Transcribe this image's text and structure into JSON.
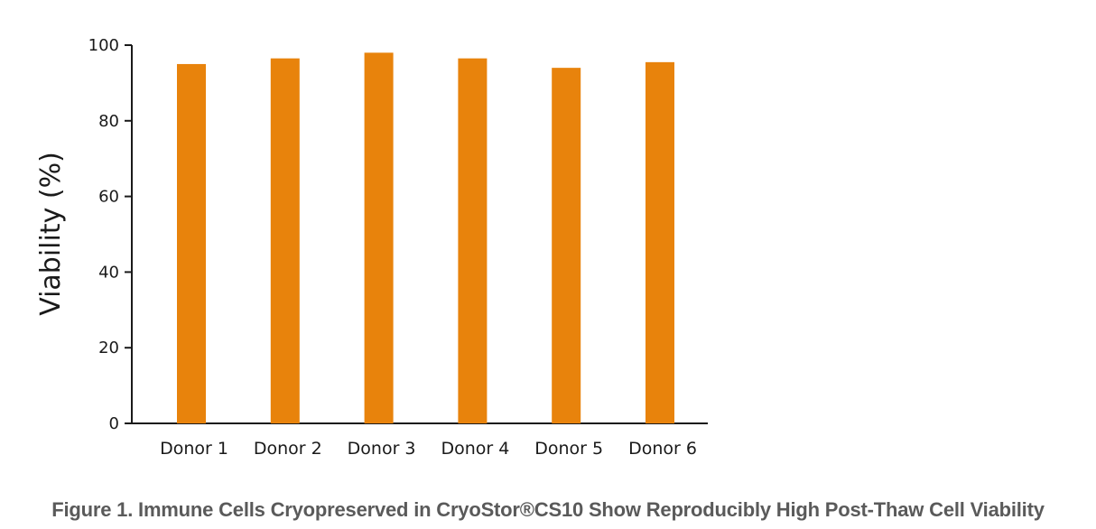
{
  "chart_data": {
    "type": "bar",
    "categories": [
      "Donor 1",
      "Donor 2",
      "Donor 3",
      "Donor 4",
      "Donor 5",
      "Donor 6"
    ],
    "values": [
      95,
      96.5,
      98,
      96.5,
      94,
      95.5
    ],
    "ylabel": "Viability (%)",
    "xlabel": "",
    "ylim": [
      0,
      100
    ],
    "yticks": [
      0,
      20,
      40,
      60,
      80,
      100
    ],
    "grid": false,
    "legend": "none",
    "bar_color": "#e8830c"
  },
  "caption": "Figure 1. Immune Cells Cryopreserved in CryoStor®CS10 Show Reproducibly High Post-Thaw Cell Viability"
}
